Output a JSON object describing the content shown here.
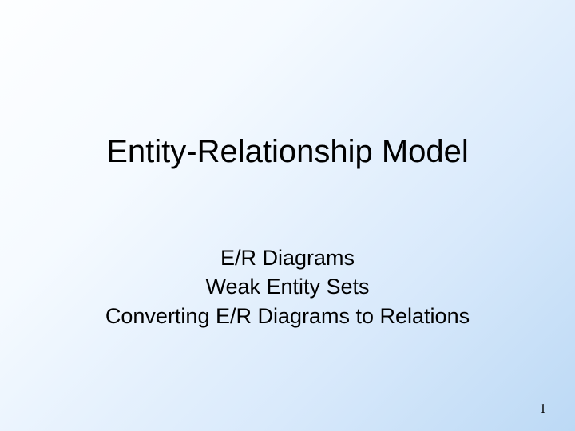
{
  "slide": {
    "title": "Entity-Relationship Model",
    "subtitles": [
      "E/R Diagrams",
      "Weak Entity Sets",
      "Converting E/R Diagrams to Relations"
    ],
    "page_number": "1",
    "background_gradient": {
      "from": "#fdfeff",
      "to": "#bcd9f5"
    },
    "title_fontsize": 40,
    "subtitle_fontsize": 27,
    "text_color": "#000000"
  }
}
